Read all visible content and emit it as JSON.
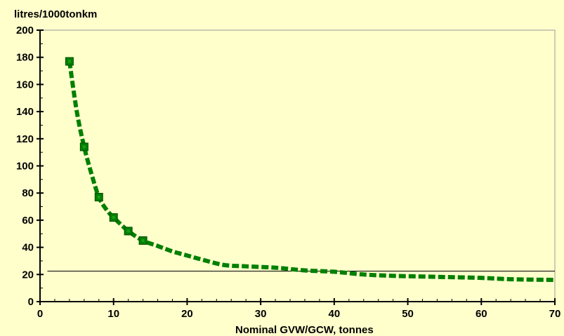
{
  "chart_data": {
    "type": "line",
    "title": "",
    "ylabel": "litres/1000tonkm",
    "xlabel": "Nominal GVW/GCW, tonnes",
    "xlim": [
      0,
      70
    ],
    "ylim": [
      0,
      200
    ],
    "x_ticks": [
      0,
      10,
      20,
      30,
      40,
      50,
      60,
      70
    ],
    "y_ticks": [
      0,
      20,
      40,
      60,
      80,
      100,
      120,
      140,
      160,
      180,
      200
    ],
    "x_tick_labels": [
      "0",
      "10",
      "20",
      "30",
      "40",
      "50",
      "60",
      "70"
    ],
    "y_tick_labels": [
      "0",
      "20",
      "40",
      "60",
      "80",
      "100",
      "120",
      "140",
      "160",
      "180",
      "200"
    ],
    "grid": false,
    "legend": "none",
    "series": [
      {
        "style": "markers",
        "color": "#008000",
        "x": [
          4,
          6,
          8,
          10,
          12,
          14
        ],
        "y": [
          177,
          114,
          77,
          62,
          52,
          45
        ]
      },
      {
        "style": "dashed-curve",
        "color": "#008000",
        "x": [
          4,
          5,
          6,
          7,
          8,
          9,
          10,
          12,
          14,
          16,
          18,
          20,
          22,
          25,
          28,
          32,
          36,
          40,
          44,
          48,
          52,
          56,
          60,
          64,
          70
        ],
        "y": [
          177,
          140,
          114,
          94,
          77,
          68,
          62,
          52,
          45,
          41,
          37,
          34,
          31,
          27,
          26,
          25,
          23,
          22,
          20,
          19,
          18.5,
          18,
          17.5,
          16.5,
          16
        ]
      },
      {
        "style": "reference-line",
        "color": "#000000",
        "x": [
          1,
          70
        ],
        "y": [
          22.5,
          22.5
        ]
      }
    ]
  }
}
